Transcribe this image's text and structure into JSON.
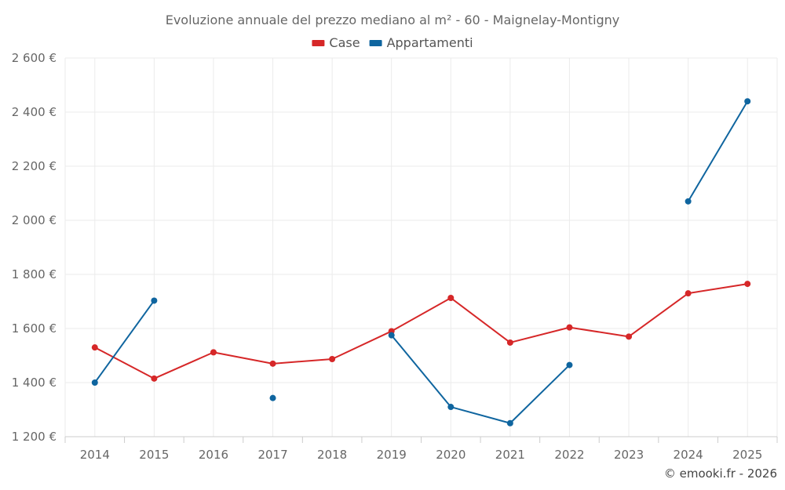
{
  "chart_data": {
    "type": "line",
    "title": "Evoluzione annuale del prezzo mediano al m² - 60 - Maignelay-Montigny",
    "xlabel": "",
    "ylabel": "",
    "categories": [
      "2014",
      "2015",
      "2016",
      "2017",
      "2018",
      "2019",
      "2020",
      "2021",
      "2022",
      "2023",
      "2024",
      "2025"
    ],
    "ylim": [
      1200,
      2600
    ],
    "yticks": [
      1200,
      1400,
      1600,
      1800,
      2000,
      2200,
      2400,
      2600
    ],
    "ytick_labels": [
      "1 200 €",
      "1 400 €",
      "1 600 €",
      "1 800 €",
      "2 000 €",
      "2 200 €",
      "2 400 €",
      "2 600 €"
    ],
    "grid": true,
    "legend_position": "top-center",
    "series": [
      {
        "name": "Case",
        "color": "#d62728",
        "values": [
          1530,
          1415,
          1512,
          1470,
          1487,
          1590,
          1713,
          1548,
          1604,
          1570,
          1730,
          1765
        ]
      },
      {
        "name": "Appartamenti",
        "color": "#0f659f",
        "values": [
          1400,
          1703,
          null,
          1343,
          null,
          1575,
          1310,
          1250,
          1465,
          null,
          2070,
          2440
        ]
      }
    ]
  },
  "credit": "© emooki.fr - 2026"
}
